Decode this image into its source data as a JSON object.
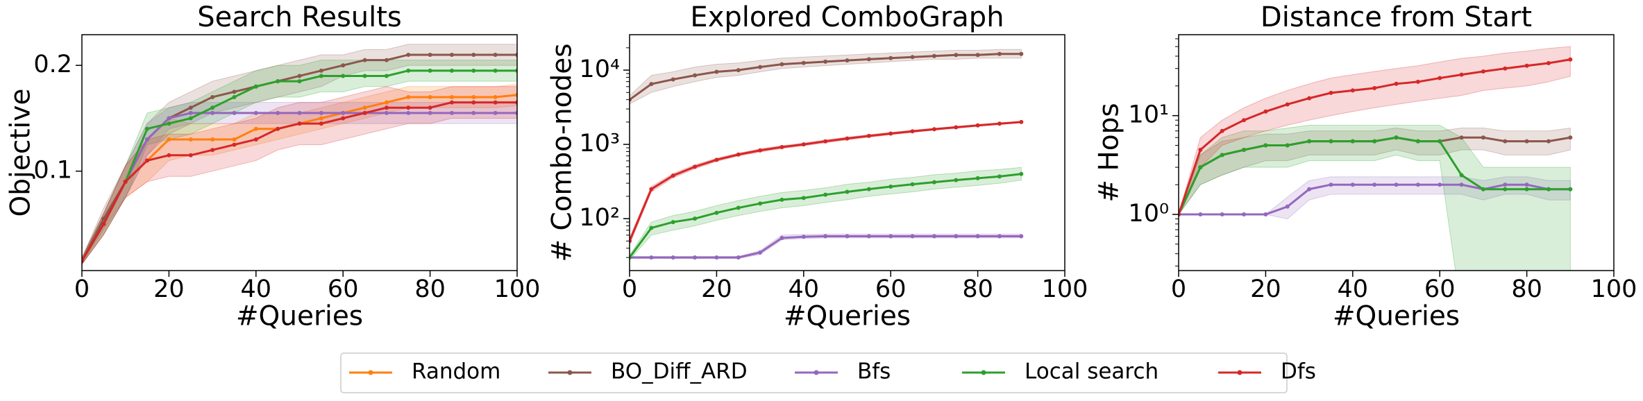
{
  "chart_data": [
    {
      "type": "line",
      "title": "Search Results",
      "xlabel": "#Queries",
      "ylabel": "Objective",
      "x": [
        0,
        5,
        10,
        15,
        20,
        25,
        30,
        35,
        40,
        45,
        50,
        55,
        60,
        65,
        70,
        75,
        80,
        85,
        90,
        95,
        100
      ],
      "xlim": [
        0,
        100
      ],
      "xticks": [
        0,
        20,
        40,
        60,
        80,
        100
      ],
      "ylim": [
        0.006,
        0.229
      ],
      "yticks": [
        0.1,
        0.2
      ],
      "series": [
        {
          "name": "Random",
          "color": "#ff7f0e",
          "values": [
            0.015,
            0.05,
            0.09,
            0.11,
            0.13,
            0.13,
            0.13,
            0.13,
            0.14,
            0.14,
            0.145,
            0.15,
            0.155,
            0.16,
            0.165,
            0.17,
            0.17,
            0.17,
            0.17,
            0.17,
            0.172
          ],
          "lower": [
            0.012,
            0.04,
            0.075,
            0.09,
            0.11,
            0.115,
            0.115,
            0.12,
            0.125,
            0.13,
            0.135,
            0.14,
            0.145,
            0.15,
            0.155,
            0.16,
            0.16,
            0.16,
            0.16,
            0.16,
            0.162
          ],
          "upper": [
            0.018,
            0.06,
            0.105,
            0.13,
            0.15,
            0.145,
            0.145,
            0.145,
            0.155,
            0.155,
            0.155,
            0.16,
            0.165,
            0.17,
            0.175,
            0.18,
            0.18,
            0.18,
            0.18,
            0.18,
            0.182
          ]
        },
        {
          "name": "BO_Diff_ARD",
          "color": "#8c564b",
          "values": [
            0.015,
            0.055,
            0.09,
            0.13,
            0.15,
            0.16,
            0.17,
            0.175,
            0.18,
            0.185,
            0.19,
            0.195,
            0.2,
            0.205,
            0.205,
            0.21,
            0.21,
            0.21,
            0.21,
            0.21,
            0.21
          ],
          "lower": [
            0.012,
            0.045,
            0.075,
            0.115,
            0.135,
            0.145,
            0.155,
            0.16,
            0.165,
            0.17,
            0.175,
            0.18,
            0.19,
            0.195,
            0.195,
            0.2,
            0.2,
            0.2,
            0.2,
            0.2,
            0.2
          ],
          "upper": [
            0.018,
            0.065,
            0.105,
            0.145,
            0.165,
            0.175,
            0.185,
            0.19,
            0.195,
            0.2,
            0.205,
            0.21,
            0.21,
            0.215,
            0.215,
            0.22,
            0.22,
            0.22,
            0.22,
            0.22,
            0.22
          ]
        },
        {
          "name": "Bfs",
          "color": "#9467bd",
          "values": [
            0.015,
            0.05,
            0.09,
            0.13,
            0.15,
            0.155,
            0.155,
            0.155,
            0.155,
            0.155,
            0.155,
            0.155,
            0.155,
            0.155,
            0.155,
            0.155,
            0.155,
            0.155,
            0.155,
            0.155,
            0.155
          ],
          "lower": [
            0.012,
            0.04,
            0.075,
            0.115,
            0.14,
            0.145,
            0.145,
            0.145,
            0.145,
            0.145,
            0.145,
            0.145,
            0.145,
            0.145,
            0.145,
            0.145,
            0.145,
            0.145,
            0.145,
            0.145,
            0.145
          ],
          "upper": [
            0.018,
            0.06,
            0.105,
            0.145,
            0.16,
            0.165,
            0.165,
            0.165,
            0.165,
            0.165,
            0.165,
            0.165,
            0.165,
            0.165,
            0.165,
            0.165,
            0.165,
            0.165,
            0.165,
            0.165,
            0.165
          ]
        },
        {
          "name": "Local search",
          "color": "#2ca02c",
          "values": [
            0.015,
            0.05,
            0.09,
            0.14,
            0.145,
            0.15,
            0.16,
            0.17,
            0.18,
            0.185,
            0.185,
            0.19,
            0.19,
            0.19,
            0.19,
            0.195,
            0.195,
            0.195,
            0.195,
            0.195,
            0.195
          ],
          "lower": [
            0.012,
            0.04,
            0.075,
            0.125,
            0.13,
            0.135,
            0.145,
            0.155,
            0.165,
            0.17,
            0.17,
            0.175,
            0.175,
            0.18,
            0.18,
            0.185,
            0.185,
            0.185,
            0.185,
            0.185,
            0.185
          ],
          "upper": [
            0.018,
            0.06,
            0.105,
            0.155,
            0.16,
            0.165,
            0.175,
            0.185,
            0.195,
            0.2,
            0.2,
            0.205,
            0.205,
            0.205,
            0.205,
            0.205,
            0.205,
            0.205,
            0.205,
            0.205,
            0.205
          ]
        },
        {
          "name": "Dfs",
          "color": "#d62728",
          "values": [
            0.015,
            0.05,
            0.09,
            0.11,
            0.115,
            0.115,
            0.12,
            0.125,
            0.13,
            0.14,
            0.145,
            0.145,
            0.15,
            0.155,
            0.16,
            0.16,
            0.16,
            0.165,
            0.165,
            0.165,
            0.165
          ],
          "lower": [
            0.012,
            0.04,
            0.075,
            0.09,
            0.095,
            0.095,
            0.1,
            0.105,
            0.11,
            0.12,
            0.125,
            0.125,
            0.13,
            0.135,
            0.14,
            0.145,
            0.145,
            0.15,
            0.15,
            0.15,
            0.15
          ],
          "upper": [
            0.018,
            0.06,
            0.105,
            0.13,
            0.135,
            0.135,
            0.14,
            0.145,
            0.15,
            0.16,
            0.165,
            0.165,
            0.17,
            0.175,
            0.18,
            0.175,
            0.175,
            0.18,
            0.18,
            0.18,
            0.18
          ]
        }
      ]
    },
    {
      "type": "line",
      "title": "Explored ComboGraph",
      "xlabel": "#Queries",
      "ylabel": "# Combo-nodes",
      "yscale": "log",
      "x": [
        0,
        5,
        10,
        15,
        20,
        25,
        30,
        35,
        40,
        45,
        50,
        55,
        60,
        65,
        70,
        75,
        80,
        85,
        90
      ],
      "xlim": [
        0,
        100
      ],
      "xticks": [
        0,
        20,
        40,
        60,
        80,
        100
      ],
      "ylim": [
        20,
        30000
      ],
      "yticks": [
        {
          "value": 100,
          "label": "10²"
        },
        {
          "value": 1000,
          "label": "10³"
        },
        {
          "value": 10000,
          "label": "10⁴"
        }
      ],
      "series": [
        {
          "name": "BO_Diff_ARD",
          "color": "#8c564b",
          "values": [
            4000,
            6500,
            7500,
            8500,
            9500,
            10000,
            11000,
            12000,
            12500,
            13000,
            13500,
            14000,
            14500,
            15000,
            15500,
            16000,
            16000,
            16500,
            16500
          ],
          "lower": [
            3500,
            5000,
            6000,
            7000,
            8000,
            8500,
            9500,
            10500,
            11000,
            11500,
            12000,
            12500,
            13000,
            13500,
            14000,
            14000,
            14500,
            14500,
            14500
          ],
          "upper": [
            4500,
            8500,
            9500,
            11000,
            12000,
            12500,
            13500,
            14500,
            15000,
            15500,
            16000,
            16500,
            17000,
            17500,
            18000,
            18500,
            18500,
            19000,
            19000
          ]
        },
        {
          "name": "Bfs",
          "color": "#9467bd",
          "values": [
            30,
            30,
            30,
            30,
            30,
            30,
            35,
            55,
            57,
            58,
            58,
            58,
            58,
            58,
            58,
            58,
            58,
            58,
            58
          ],
          "lower": [
            29,
            29,
            29,
            29,
            29,
            29,
            33,
            52,
            54,
            55,
            55,
            55,
            55,
            55,
            55,
            55,
            55,
            55,
            55
          ],
          "upper": [
            31,
            31,
            31,
            31,
            31,
            31,
            37,
            60,
            61,
            62,
            62,
            62,
            62,
            62,
            62,
            62,
            62,
            62,
            62
          ]
        },
        {
          "name": "Local search",
          "color": "#2ca02c",
          "values": [
            30,
            75,
            90,
            100,
            120,
            140,
            160,
            180,
            190,
            210,
            230,
            250,
            270,
            290,
            310,
            330,
            350,
            370,
            400
          ],
          "lower": [
            28,
            60,
            70,
            80,
            95,
            110,
            125,
            140,
            150,
            165,
            180,
            200,
            215,
            230,
            250,
            265,
            280,
            300,
            330
          ],
          "upper": [
            32,
            90,
            110,
            125,
            150,
            175,
            200,
            225,
            240,
            260,
            290,
            310,
            340,
            360,
            390,
            410,
            440,
            460,
            490
          ]
        },
        {
          "name": "Dfs",
          "color": "#d62728",
          "values": [
            50,
            250,
            380,
            500,
            620,
            730,
            830,
            920,
            1000,
            1100,
            1200,
            1300,
            1400,
            1500,
            1600,
            1700,
            1800,
            1900,
            2000
          ],
          "lower": [
            45,
            230,
            355,
            470,
            590,
            700,
            790,
            880,
            960,
            1050,
            1150,
            1250,
            1350,
            1450,
            1550,
            1650,
            1750,
            1850,
            1950
          ],
          "upper": [
            55,
            270,
            405,
            530,
            650,
            760,
            870,
            960,
            1040,
            1150,
            1250,
            1350,
            1450,
            1550,
            1650,
            1750,
            1850,
            1950,
            2050
          ]
        }
      ]
    },
    {
      "type": "line",
      "title": "Distance from Start",
      "xlabel": "#Queries",
      "ylabel": "# Hops",
      "yscale": "log",
      "x": [
        0,
        5,
        10,
        15,
        20,
        25,
        30,
        35,
        40,
        45,
        50,
        55,
        60,
        65,
        70,
        75,
        80,
        85,
        90
      ],
      "xlim": [
        0,
        100
      ],
      "xticks": [
        0,
        20,
        40,
        60,
        80,
        100
      ],
      "ylim": [
        0.27,
        66
      ],
      "yticks": [
        {
          "value": 1,
          "label": "10⁰"
        },
        {
          "value": 10,
          "label": "10¹"
        }
      ],
      "series": [
        {
          "name": "BO_Diff_ARD",
          "color": "#8c564b",
          "values": [
            1,
            3,
            4,
            4.5,
            5,
            5,
            5.5,
            5.5,
            5.5,
            5.5,
            6,
            5.5,
            5.5,
            6,
            6,
            5.5,
            5.5,
            5.5,
            6
          ],
          "lower": [
            1,
            2,
            2.5,
            3,
            3.5,
            3.5,
            4,
            4,
            4,
            4,
            4.5,
            4,
            4,
            4.5,
            4.5,
            4,
            4,
            4,
            4.5
          ],
          "upper": [
            1,
            4,
            5.5,
            6,
            6.5,
            6.5,
            7,
            7,
            7,
            7,
            7.5,
            7,
            7,
            7.5,
            7.5,
            7,
            7,
            7,
            7.5
          ]
        },
        {
          "name": "Bfs",
          "color": "#9467bd",
          "values": [
            1,
            1,
            1,
            1,
            1,
            1.2,
            1.8,
            2,
            2,
            2,
            2,
            2,
            2,
            2,
            1.8,
            2,
            2,
            1.8,
            1.8
          ],
          "lower": [
            1,
            1,
            1,
            1,
            1,
            0.9,
            1.4,
            1.6,
            1.6,
            1.6,
            1.6,
            1.6,
            1.6,
            1.6,
            1.4,
            1.6,
            1.6,
            1.4,
            1.4
          ],
          "upper": [
            1,
            1,
            1,
            1,
            1,
            1.5,
            2.2,
            2.4,
            2.4,
            2.4,
            2.4,
            2.4,
            2.4,
            2.4,
            2.2,
            2.4,
            2.4,
            2.2,
            2.2
          ]
        },
        {
          "name": "Local search",
          "color": "#2ca02c",
          "values": [
            1,
            3,
            4,
            4.5,
            5,
            5,
            5.5,
            5.5,
            5.5,
            5.5,
            6,
            5.5,
            5.5,
            2.5,
            1.8,
            1.8,
            1.8,
            1.8,
            1.8
          ],
          "lower": [
            1,
            2,
            2.5,
            3,
            3,
            3,
            3.5,
            3.5,
            3.5,
            3.5,
            4,
            3.5,
            3.5,
            0.1,
            0.1,
            0.1,
            0.1,
            0.1,
            0.1
          ],
          "upper": [
            1,
            4,
            6,
            7,
            7,
            7.5,
            8,
            8,
            8,
            8,
            8,
            8,
            8,
            6,
            3,
            3,
            3,
            3,
            3
          ]
        },
        {
          "name": "Dfs",
          "color": "#d62728",
          "values": [
            1,
            4.5,
            7,
            9,
            11,
            13,
            15,
            17,
            18,
            19,
            21,
            22,
            24,
            26,
            28,
            30,
            32,
            34,
            37
          ],
          "lower": [
            1,
            3,
            5,
            6,
            7,
            8,
            9,
            10,
            11,
            12,
            13,
            14,
            15,
            16,
            18,
            19,
            20,
            22,
            25
          ],
          "upper": [
            1,
            6,
            9,
            12,
            15,
            18,
            21,
            24,
            26,
            28,
            30,
            32,
            35,
            38,
            40,
            43,
            45,
            48,
            50
          ]
        }
      ]
    }
  ]
}
